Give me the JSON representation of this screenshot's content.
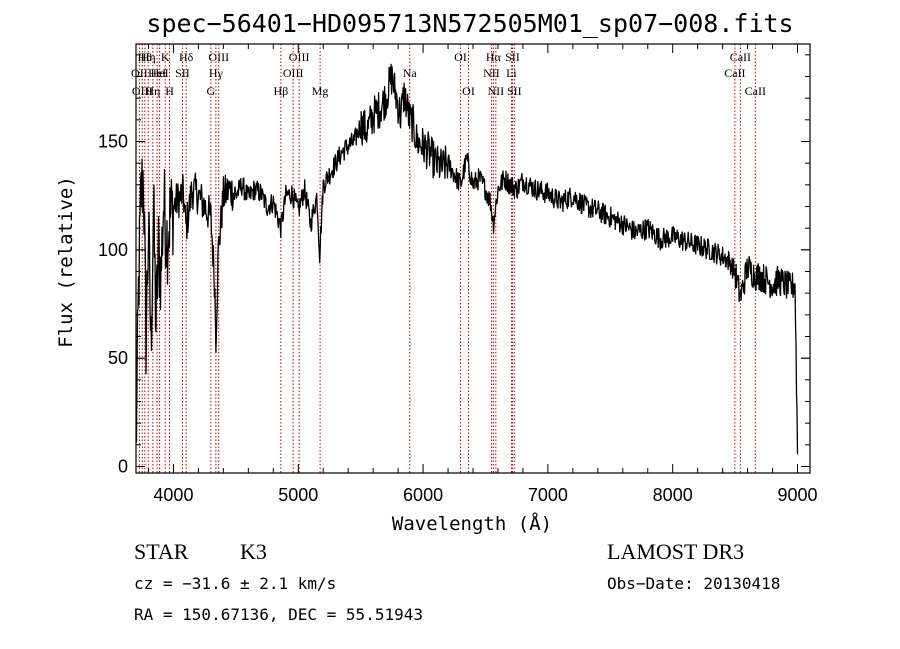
{
  "chart_data": {
    "type": "line",
    "title": "spec−56401−HD095713N572505M01_sp07−008.fits",
    "xlabel": "Wavelength (Å)",
    "ylabel": "Flux (relative)",
    "xlim": [
      3700,
      9100
    ],
    "ylim": [
      -3,
      195
    ],
    "xticks": [
      4000,
      5000,
      6000,
      7000,
      8000,
      9000
    ],
    "yticks": [
      0,
      50,
      100,
      150
    ],
    "grid": false,
    "series": [
      {
        "x": [
          3700,
          3720,
          3740,
          3760,
          3780,
          3800,
          3820,
          3840,
          3860,
          3880,
          3900,
          3920,
          3950,
          3970,
          3990,
          4020,
          4050,
          4080,
          4101,
          4150,
          4200,
          4250,
          4300,
          4330,
          4340,
          4360,
          4400,
          4450,
          4500,
          4550,
          4600,
          4650,
          4700,
          4750,
          4800,
          4861,
          4900,
          4950,
          5000,
          5050,
          5100,
          5150,
          5172,
          5200,
          5250,
          5300,
          5350,
          5400,
          5450,
          5500,
          5550,
          5600,
          5650,
          5700,
          5750,
          5780,
          5820,
          5850,
          5893,
          5920,
          5950,
          6000,
          6050,
          6100,
          6150,
          6200,
          6250,
          6300,
          6350,
          6400,
          6450,
          6500,
          6540,
          6563,
          6600,
          6650,
          6700,
          6750,
          6800,
          6900,
          7000,
          7100,
          7200,
          7300,
          7400,
          7500,
          7600,
          7700,
          7800,
          7900,
          8000,
          8100,
          8200,
          8300,
          8400,
          8450,
          8498,
          8542,
          8600,
          8662,
          8700,
          8750,
          8800,
          8850,
          8900,
          8950,
          8980,
          9000
        ],
        "values": [
          5,
          80,
          125,
          135,
          60,
          110,
          55,
          120,
          65,
          100,
          88,
          122,
          105,
          115,
          118,
          122,
          124,
          126,
          110,
          128,
          125,
          120,
          115,
          85,
          60,
          100,
          125,
          128,
          125,
          130,
          124,
          128,
          126,
          120,
          122,
          110,
          125,
          126,
          118,
          128,
          112,
          125,
          98,
          130,
          135,
          140,
          145,
          148,
          150,
          158,
          155,
          162,
          165,
          170,
          180,
          172,
          162,
          172,
          160,
          158,
          150,
          148,
          145,
          140,
          138,
          140,
          135,
          130,
          142,
          130,
          133,
          128,
          122,
          112,
          128,
          133,
          130,
          128,
          132,
          128,
          126,
          122,
          125,
          120,
          118,
          115,
          112,
          108,
          110,
          105,
          106,
          104,
          102,
          100,
          97,
          95,
          90,
          78,
          92,
          88,
          88,
          86,
          84,
          86,
          84,
          82,
          85,
          8
        ]
      }
    ],
    "lines": [
      {
        "wave": 3727,
        "row": 1,
        "label": "OII"
      },
      {
        "wave": 3750,
        "row": 2,
        "label": "OIII"
      },
      {
        "wave": 3771,
        "row": 0,
        "label": "Hθ"
      },
      {
        "wave": 3798,
        "row": 0,
        "label": "Hη"
      },
      {
        "wave": 3835,
        "row": 2,
        "label": "Hη"
      },
      {
        "wave": 3869,
        "row": 1,
        "label": "HeI"
      },
      {
        "wave": 3889,
        "row": 1,
        "label": "HeI"
      },
      {
        "wave": 3934,
        "row": 0,
        "label": "K"
      },
      {
        "wave": 3969,
        "row": 2,
        "label": "H"
      },
      {
        "wave": 4072,
        "row": 1,
        "label": "SII"
      },
      {
        "wave": 4102,
        "row": 0,
        "label": "Hδ"
      },
      {
        "wave": 4300,
        "row": 2,
        "label": "G"
      },
      {
        "wave": 4340,
        "row": 1,
        "label": "Hγ"
      },
      {
        "wave": 4363,
        "row": 0,
        "label": "OIII"
      },
      {
        "wave": 4861,
        "row": 2,
        "label": "Hβ"
      },
      {
        "wave": 4959,
        "row": 1,
        "label": "OIII"
      },
      {
        "wave": 5007,
        "row": 0,
        "label": "OIII"
      },
      {
        "wave": 5175,
        "row": 2,
        "label": "Mg"
      },
      {
        "wave": 5893,
        "row": 1,
        "label": "Na"
      },
      {
        "wave": 6300,
        "row": 0,
        "label": "OI"
      },
      {
        "wave": 6364,
        "row": 2,
        "label": "OI"
      },
      {
        "wave": 6548,
        "row": 1,
        "label": "NII"
      },
      {
        "wave": 6563,
        "row": 0,
        "label": "Hα"
      },
      {
        "wave": 6583,
        "row": 2,
        "label": "NII"
      },
      {
        "wave": 6708,
        "row": 1,
        "label": "Li"
      },
      {
        "wave": 6716,
        "row": 0,
        "label": "SII"
      },
      {
        "wave": 6731,
        "row": 2,
        "label": "SII"
      },
      {
        "wave": 8498,
        "row": 1,
        "label": "CaII"
      },
      {
        "wave": 8542,
        "row": 0,
        "label": "CaII"
      },
      {
        "wave": 8662,
        "row": 2,
        "label": "CaII"
      }
    ],
    "line_color": "#c00000",
    "series_color": "#000000"
  },
  "info": {
    "object_class": "STAR",
    "subclass": "K3",
    "survey": "LAMOST DR3",
    "cz": "cz = −31.6 ± 2.1 km/s",
    "obs_date": "Obs−Date: 20130418",
    "coords": "RA = 150.67136, DEC =  55.51943"
  }
}
